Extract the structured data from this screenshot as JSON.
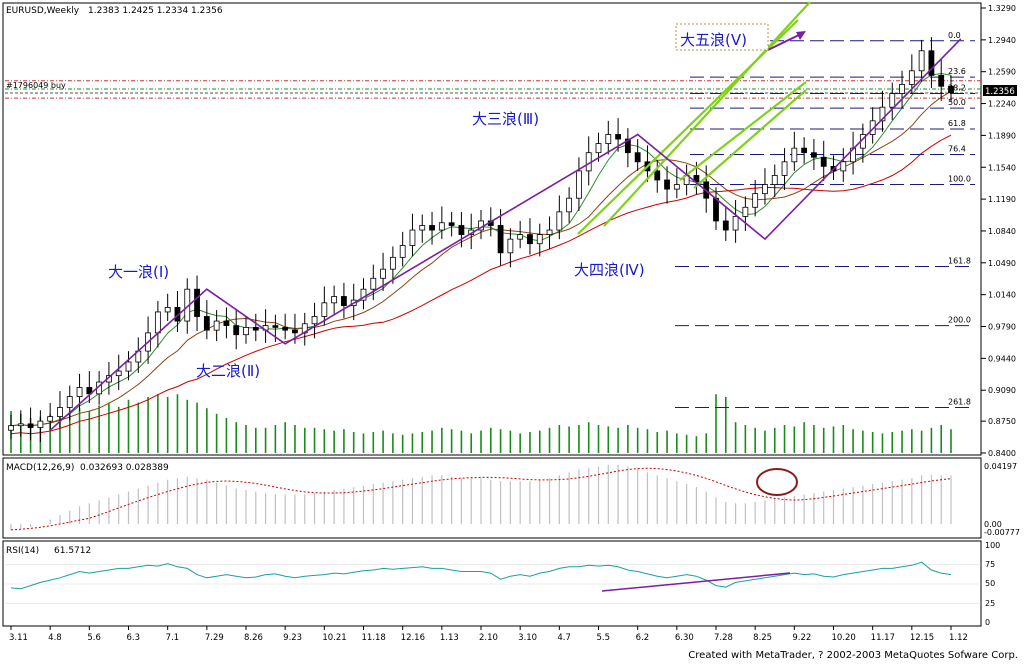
{
  "header": {
    "symbol": "EURUSD,Weekly",
    "ohlc": "1.2383 1.2425 1.2334 1.2356",
    "order_label": "#1796049 buy",
    "current_price_tag": "1.2356"
  },
  "macd": {
    "label": "MACD(12,26,9)",
    "values": "0.032693 0.028389",
    "scale": [
      "0.04197",
      "0.00",
      "-0.00777"
    ]
  },
  "rsi": {
    "label": "RSI(14)",
    "value": "61.5712",
    "scale": [
      "100",
      "75",
      "50",
      "25",
      "0"
    ]
  },
  "footer": {
    "credit": "Created with MetaTrader, ? 2002-2003 MetaQuotes Sofware Corp."
  },
  "waves": {
    "w1": "大一浪(Ⅰ)",
    "w2": "大二浪(Ⅱ)",
    "w3": "大三浪(Ⅲ)",
    "w4": "大四浪(Ⅳ)",
    "w5": "大五浪(Ⅴ)"
  },
  "fib_levels": [
    "0.0",
    "23.6",
    "38.2",
    "50.0",
    "61.8",
    "76.4",
    "100.0",
    "161.8",
    "200.0",
    "261.8"
  ],
  "colors": {
    "bull_candle": "#ffffff",
    "bear_candle": "#000000",
    "ma_fast": "#2e8b2e",
    "ma_slow": "#8b4513",
    "ma_long": "#cc0000",
    "wave_line": "#7a1fa2",
    "channel": "#7fd11b",
    "label": "#1a1acc",
    "volume": "#1a8a1a",
    "macd_hist": "#c0c0c0",
    "macd_signal": "#cc0000",
    "rsi_line": "#1aa0a0"
  },
  "chart_data": {
    "type": "candlestick",
    "title": "EURUSD,Weekly",
    "y_ticks": [
      "1.3290",
      "1.2940",
      "1.2590",
      "1.2240",
      "1.1890",
      "1.1540",
      "1.1190",
      "1.0840",
      "1.0490",
      "1.0140",
      "0.9790",
      "0.9440",
      "0.9090",
      "0.8750",
      "0.8400"
    ],
    "ylim": [
      0.84,
      1.329
    ],
    "x_ticks": [
      "3.11",
      "4.8",
      "5.6",
      "6.3",
      "7.1",
      "7.29",
      "8.26",
      "9.23",
      "10.21",
      "11.18",
      "12.16",
      "1.13",
      "2.10",
      "3.10",
      "4.7",
      "5.5",
      "6.2",
      "6.30",
      "7.28",
      "8.25",
      "9.22",
      "10.20",
      "11.17",
      "12.15",
      "1.12"
    ],
    "x_tick_bar_index": [
      0,
      4,
      8,
      12,
      16,
      20,
      24,
      28,
      32,
      36,
      40,
      44,
      48,
      52,
      56,
      60,
      64,
      68,
      72,
      76,
      80,
      84,
      88,
      92,
      96
    ],
    "bars_close": [
      0.87,
      0.872,
      0.868,
      0.875,
      0.88,
      0.89,
      0.902,
      0.912,
      0.905,
      0.918,
      0.925,
      0.93,
      0.94,
      0.952,
      0.972,
      0.995,
      1.0,
      0.985,
      1.02,
      0.99,
      0.975,
      0.985,
      0.98,
      0.97,
      0.978,
      0.975,
      0.98,
      0.978,
      0.975,
      0.972,
      0.982,
      0.99,
      1.005,
      1.012,
      1.002,
      1.008,
      1.02,
      1.032,
      1.042,
      1.055,
      1.068,
      1.085,
      1.09,
      1.085,
      1.093,
      1.09,
      1.08,
      1.085,
      1.095,
      1.09,
      1.06,
      1.075,
      1.08,
      1.07,
      1.08,
      1.085,
      1.105,
      1.12,
      1.15,
      1.17,
      1.18,
      1.19,
      1.185,
      1.17,
      1.16,
      1.15,
      1.14,
      1.13,
      1.135,
      1.145,
      1.138,
      1.12,
      1.095,
      1.085,
      1.1,
      1.11,
      1.125,
      1.135,
      1.145,
      1.16,
      1.175,
      1.17,
      1.165,
      1.155,
      1.15,
      1.16,
      1.175,
      1.19,
      1.205,
      1.22,
      1.235,
      1.245,
      1.26,
      1.282,
      1.255,
      1.243,
      1.236
    ],
    "waves_bar_index": [
      4,
      20,
      28,
      64,
      77,
      97
    ],
    "waves_price": [
      0.865,
      1.02,
      0.96,
      1.19,
      1.075,
      1.295
    ],
    "fib_price": [
      1.293,
      1.253,
      1.235,
      1.219,
      1.196,
      1.168,
      1.135,
      1.045,
      0.98,
      0.89
    ],
    "volume": [
      30,
      28,
      25,
      26,
      28,
      30,
      30,
      32,
      30,
      34,
      36,
      33,
      38,
      36,
      40,
      42,
      40,
      42,
      38,
      36,
      32,
      28,
      25,
      22,
      20,
      18,
      18,
      20,
      22,
      20,
      18,
      18,
      17,
      16,
      17,
      15,
      14,
      15,
      16,
      14,
      13,
      14,
      15,
      16,
      18,
      17,
      16,
      14,
      16,
      18,
      17,
      16,
      14,
      15,
      16,
      18,
      20,
      19,
      20,
      22,
      20,
      19,
      18,
      20,
      18,
      17,
      15,
      16,
      14,
      13,
      12,
      14,
      42,
      40,
      22,
      20,
      18,
      16,
      18,
      20,
      19,
      22,
      20,
      18,
      19,
      20,
      17,
      16,
      15,
      14,
      15,
      16,
      17,
      16,
      18,
      20,
      17
    ],
    "macd_hist": [
      -0.004,
      -0.003,
      -0.002,
      0.0,
      0.003,
      0.006,
      0.009,
      0.012,
      0.014,
      0.016,
      0.018,
      0.02,
      0.022,
      0.024,
      0.026,
      0.028,
      0.03,
      0.031,
      0.032,
      0.031,
      0.03,
      0.028,
      0.026,
      0.024,
      0.023,
      0.022,
      0.021,
      0.02,
      0.02,
      0.02,
      0.02,
      0.021,
      0.022,
      0.023,
      0.024,
      0.025,
      0.026,
      0.027,
      0.028,
      0.029,
      0.03,
      0.031,
      0.032,
      0.033,
      0.033,
      0.032,
      0.031,
      0.031,
      0.031,
      0.03,
      0.029,
      0.029,
      0.029,
      0.029,
      0.03,
      0.031,
      0.033,
      0.035,
      0.037,
      0.038,
      0.039,
      0.04,
      0.04,
      0.039,
      0.037,
      0.035,
      0.033,
      0.031,
      0.029,
      0.027,
      0.025,
      0.022,
      0.018,
      0.015,
      0.014,
      0.014,
      0.015,
      0.016,
      0.017,
      0.018,
      0.019,
      0.02,
      0.021,
      0.022,
      0.023,
      0.024,
      0.025,
      0.026,
      0.027,
      0.028,
      0.029,
      0.03,
      0.031,
      0.033,
      0.033,
      0.033,
      0.033
    ],
    "rsi": [
      45,
      44,
      48,
      52,
      55,
      58,
      62,
      66,
      64,
      66,
      68,
      70,
      70,
      72,
      74,
      73,
      76,
      72,
      70,
      62,
      58,
      60,
      62,
      60,
      58,
      59,
      62,
      63,
      60,
      58,
      60,
      61,
      62,
      64,
      63,
      65,
      67,
      68,
      70,
      69,
      70,
      71,
      72,
      70,
      70,
      68,
      66,
      66,
      66,
      64,
      56,
      60,
      62,
      60,
      64,
      66,
      70,
      72,
      72,
      74,
      73,
      74,
      72,
      68,
      66,
      63,
      60,
      58,
      60,
      62,
      60,
      55,
      48,
      46,
      52,
      54,
      56,
      58,
      60,
      62,
      64,
      62,
      63,
      60,
      59,
      62,
      64,
      66,
      68,
      70,
      70,
      72,
      74,
      78,
      68,
      64,
      62
    ]
  }
}
